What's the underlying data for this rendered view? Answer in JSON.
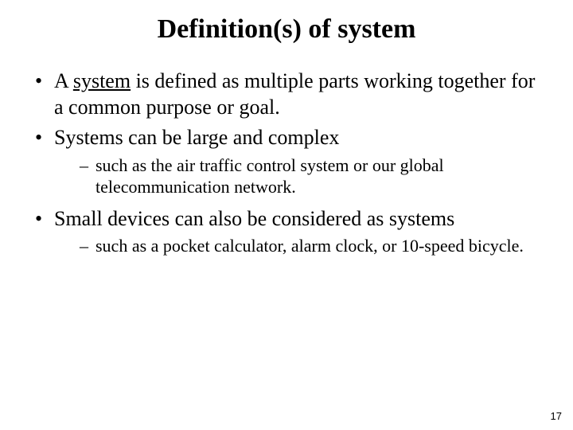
{
  "title": "Definition(s) of system",
  "bullets": {
    "b1_pre": "A ",
    "b1_underlined": "system",
    "b1_post": " is defined as multiple parts working together for a common purpose or goal.",
    "b2": "Systems can be large and complex",
    "b2_sub1": "such as the air traffic control system or our global telecommunication network.",
    "b3": "Small devices can also be considered as systems",
    "b3_sub1": "such as a pocket calculator, alarm clock, or 10-speed bicycle."
  },
  "page_number": "17",
  "colors": {
    "background": "#ffffff",
    "text": "#000000"
  }
}
